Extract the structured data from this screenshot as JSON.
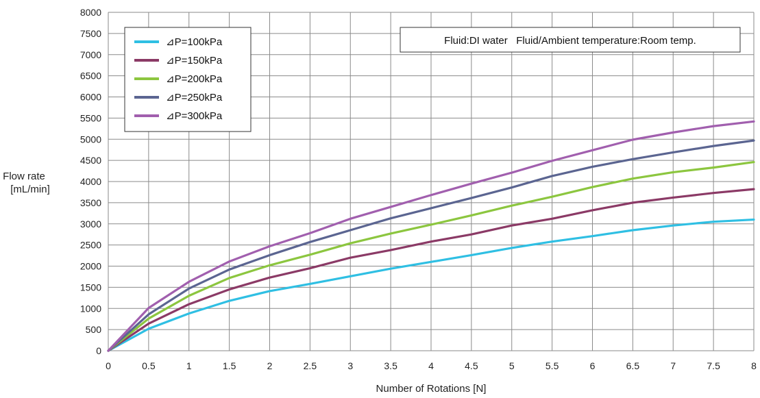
{
  "chart_data": {
    "type": "line",
    "title": "",
    "xlabel": "Number of Rotations [N]",
    "ylabel_line1": "Flow rate",
    "ylabel_line2": "[mL/min]",
    "note": "Fluid:DI water   Fluid/Ambient temperature:Room temp.",
    "xlim": [
      0,
      8
    ],
    "ylim": [
      0,
      8000
    ],
    "x_ticks": [
      0,
      0.5,
      1,
      1.5,
      2,
      2.5,
      3,
      3.5,
      4,
      4.5,
      5,
      5.5,
      6,
      6.5,
      7,
      7.5,
      8
    ],
    "y_ticks": [
      0,
      500,
      1000,
      1500,
      2000,
      2500,
      3000,
      3500,
      4000,
      4500,
      5000,
      5500,
      6000,
      6500,
      7000,
      7500,
      8000
    ],
    "grid": true,
    "legend_position": "top-left",
    "x": [
      0,
      0.5,
      1,
      1.5,
      2,
      2.5,
      3,
      3.5,
      4,
      4.5,
      5,
      5.5,
      6,
      6.5,
      7,
      7.5,
      8
    ],
    "series": [
      {
        "name": "⊿P=100kPa",
        "color": "#2fbfe3",
        "values": [
          0,
          520,
          880,
          1180,
          1410,
          1580,
          1760,
          1940,
          2100,
          2260,
          2430,
          2580,
          2710,
          2850,
          2960,
          3050,
          3100
        ]
      },
      {
        "name": "⊿P=150kPa",
        "color": "#8b3a66",
        "values": [
          0,
          640,
          1100,
          1450,
          1730,
          1950,
          2200,
          2380,
          2580,
          2750,
          2960,
          3120,
          3320,
          3500,
          3620,
          3730,
          3820
        ]
      },
      {
        "name": "⊿P=200kPa",
        "color": "#8cc63f",
        "values": [
          0,
          760,
          1300,
          1720,
          2020,
          2270,
          2540,
          2770,
          2980,
          3200,
          3430,
          3640,
          3870,
          4070,
          4220,
          4330,
          4460
        ]
      },
      {
        "name": "⊿P=250kPa",
        "color": "#5b6591",
        "values": [
          0,
          860,
          1470,
          1920,
          2260,
          2570,
          2850,
          3130,
          3370,
          3610,
          3860,
          4130,
          4350,
          4530,
          4690,
          4840,
          4970
        ]
      },
      {
        "name": "⊿P=300kPa",
        "color": "#a15fae",
        "values": [
          0,
          1010,
          1630,
          2110,
          2470,
          2780,
          3120,
          3400,
          3680,
          3950,
          4210,
          4490,
          4740,
          4990,
          5160,
          5310,
          5420
        ]
      }
    ]
  }
}
